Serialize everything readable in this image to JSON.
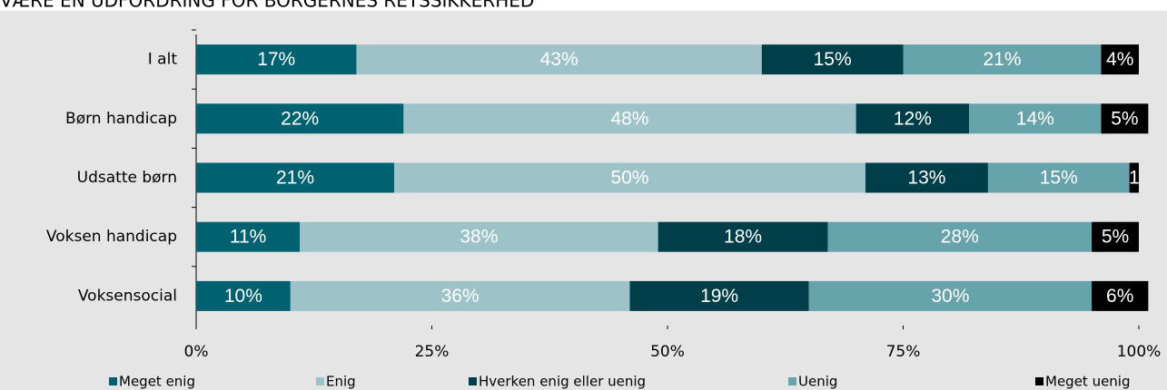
{
  "chart_data": {
    "type": "stacked-barh",
    "title": "VÆRE EN UDFORDRING FOR BORGERNES RETSSIKKERHED",
    "categories": [
      "I alt",
      "Børn handicap",
      "Udsatte børn",
      "Voksen handicap",
      "Voksensocial"
    ],
    "series": [
      {
        "name": "Meget enig",
        "color": "#006170",
        "values": [
          17,
          22,
          21,
          11,
          10
        ],
        "value_labels": [
          "17%",
          "22%",
          "21%",
          "11%",
          "10%"
        ]
      },
      {
        "name": "Enig",
        "color": "#9dc3c9",
        "values": [
          43,
          48,
          50,
          38,
          36
        ],
        "value_labels": [
          "43%",
          "48%",
          "50%",
          "38%",
          "36%"
        ]
      },
      {
        "name": "Hverken enig eller uenig",
        "color": "#003f4a",
        "values": [
          15,
          12,
          13,
          18,
          19
        ],
        "value_labels": [
          "15%",
          "12%",
          "13%",
          "18%",
          "19%"
        ]
      },
      {
        "name": "Uenig",
        "color": "#67a3aa",
        "values": [
          21,
          14,
          15,
          28,
          30
        ],
        "value_labels": [
          "21%",
          "14%",
          "15%",
          "28%",
          "30%"
        ]
      },
      {
        "name": "Meget uenig",
        "color": "#000000",
        "values": [
          4,
          5,
          1,
          5,
          6
        ],
        "value_labels": [
          "4%",
          "5%",
          "1",
          "5%",
          "6%"
        ]
      }
    ],
    "xlim": [
      0,
      100
    ],
    "xticks": [
      {
        "value": 0,
        "label": "0%"
      },
      {
        "value": 25,
        "label": "25%"
      },
      {
        "value": 50,
        "label": "50%"
      },
      {
        "value": 75,
        "label": "75%"
      },
      {
        "value": 100,
        "label": "100%"
      }
    ]
  }
}
